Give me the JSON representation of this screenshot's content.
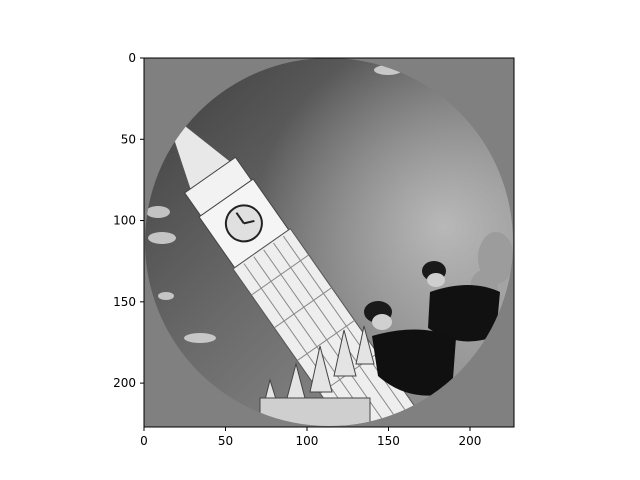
{
  "chart_data": {
    "type": "image",
    "title": "",
    "xlabel": "",
    "ylabel": "",
    "xlim": [
      0,
      227
    ],
    "ylim": [
      227,
      0
    ],
    "y_axis_inverted": true,
    "xticks": [
      0,
      50,
      100,
      150,
      200
    ],
    "yticks": [
      0,
      50,
      100,
      150,
      200
    ],
    "xtick_labels": [
      "0",
      "50",
      "100",
      "150",
      "200"
    ],
    "ytick_labels": [
      "0",
      "50",
      "100",
      "150",
      "200"
    ],
    "grid": false,
    "legend": "none",
    "colormap": "gray",
    "image_content": "grayscale photograph, rotated about 35 degrees and masked to a circle, of the Big Ben clock tower with two police officers in the foreground"
  }
}
